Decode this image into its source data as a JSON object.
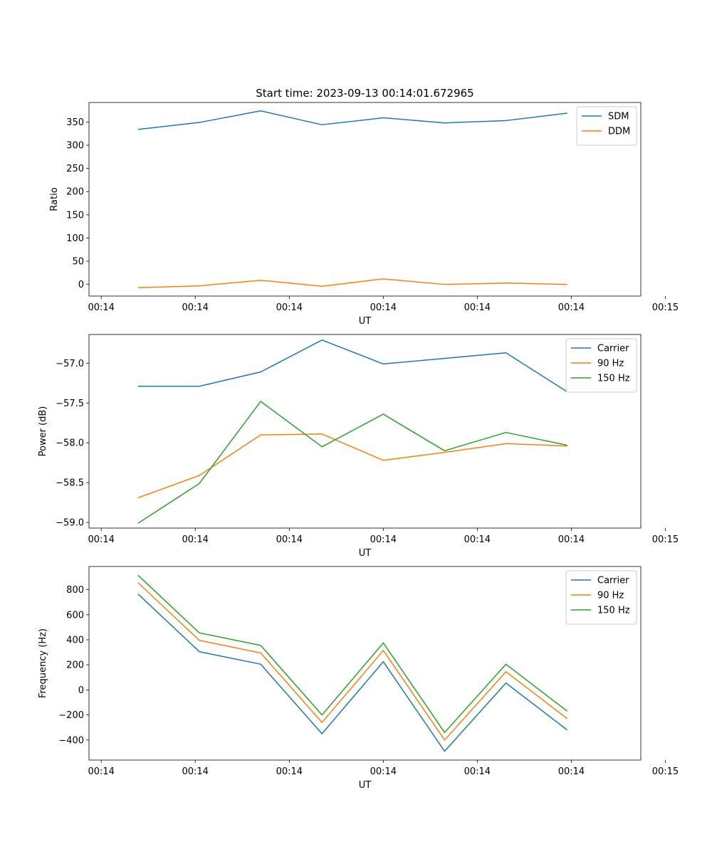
{
  "chart_data": [
    {
      "type": "line",
      "title": "Start time: 2023-09-13 00:14:01.672965",
      "xlabel": "UT",
      "ylabel": "Ratio",
      "x": [
        1,
        2,
        3,
        4,
        5,
        6,
        7,
        8
      ],
      "xlim": [
        0.2,
        9.2
      ],
      "xticks": [
        0.4,
        1.933,
        3.467,
        5.0,
        6.533,
        8.067,
        9.6
      ],
      "xtick_labels": [
        "00:14",
        "00:14",
        "00:14",
        "00:14",
        "00:14",
        "00:14",
        "00:15"
      ],
      "ylim": [
        -25,
        392
      ],
      "yticks": [
        0,
        50,
        100,
        150,
        200,
        250,
        300,
        350
      ],
      "ytick_labels": [
        "0",
        "50",
        "100",
        "150",
        "200",
        "250",
        "300",
        "350"
      ],
      "legend_loc": "upper right",
      "series": [
        {
          "name": "SDM",
          "color": "#1f77b4",
          "values": [
            334,
            349,
            374,
            344,
            359,
            348,
            353,
            369
          ]
        },
        {
          "name": "DDM",
          "color": "#ff7f0e",
          "values": [
            -7,
            -3,
            9,
            -4,
            12,
            0,
            3,
            0
          ]
        }
      ]
    },
    {
      "type": "line",
      "title": "",
      "xlabel": "UT",
      "ylabel": "Power (dB)",
      "x": [
        1,
        2,
        3,
        4,
        5,
        6,
        7,
        8
      ],
      "xlim": [
        0.2,
        9.2
      ],
      "xticks": [
        0.4,
        1.933,
        3.467,
        5.0,
        6.533,
        8.067,
        9.6
      ],
      "xtick_labels": [
        "00:14",
        "00:14",
        "00:14",
        "00:14",
        "00:14",
        "00:14",
        "00:15"
      ],
      "ylim": [
        -59.07,
        -56.64
      ],
      "yticks": [
        -59.0,
        -58.5,
        -58.0,
        -57.5,
        -57.0
      ],
      "ytick_labels": [
        "−59.0",
        "−58.5",
        "−58.0",
        "−57.5",
        "−57.0"
      ],
      "legend_loc": "upper right",
      "series": [
        {
          "name": "Carrier",
          "color": "#1f77b4",
          "values": [
            -57.29,
            -57.29,
            -57.11,
            -56.71,
            -57.01,
            -56.94,
            -56.87,
            -57.36
          ]
        },
        {
          "name": "90 Hz",
          "color": "#ff7f0e",
          "values": [
            -58.69,
            -58.41,
            -57.9,
            -57.89,
            -58.22,
            -58.12,
            -58.01,
            -58.04
          ]
        },
        {
          "name": "150 Hz",
          "color": "#2ca02c",
          "values": [
            -59.01,
            -58.51,
            -57.48,
            -58.05,
            -57.64,
            -58.1,
            -57.87,
            -58.03
          ]
        }
      ]
    },
    {
      "type": "line",
      "title": "",
      "xlabel": "UT",
      "ylabel": "Frequency (Hz)",
      "x": [
        1,
        2,
        3,
        4,
        5,
        6,
        7,
        8
      ],
      "xlim": [
        0.2,
        9.2
      ],
      "xticks": [
        0.4,
        1.933,
        3.467,
        5.0,
        6.533,
        8.067,
        9.6
      ],
      "xtick_labels": [
        "00:14",
        "00:14",
        "00:14",
        "00:14",
        "00:14",
        "00:14",
        "00:15"
      ],
      "ylim": [
        -560,
        985
      ],
      "yticks": [
        -400,
        -200,
        0,
        200,
        400,
        600,
        800
      ],
      "ytick_labels": [
        "−400",
        "−200",
        "0",
        "200",
        "400",
        "600",
        "800"
      ],
      "legend_loc": "upper right",
      "series": [
        {
          "name": "Carrier",
          "color": "#1f77b4",
          "values": [
            765,
            305,
            205,
            -350,
            225,
            -490,
            55,
            -320
          ]
        },
        {
          "name": "90 Hz",
          "color": "#ff7f0e",
          "values": [
            855,
            395,
            295,
            -260,
            315,
            -400,
            145,
            -230
          ]
        },
        {
          "name": "150 Hz",
          "color": "#2ca02c",
          "values": [
            915,
            455,
            355,
            -200,
            375,
            -340,
            205,
            -170
          ]
        }
      ]
    }
  ]
}
